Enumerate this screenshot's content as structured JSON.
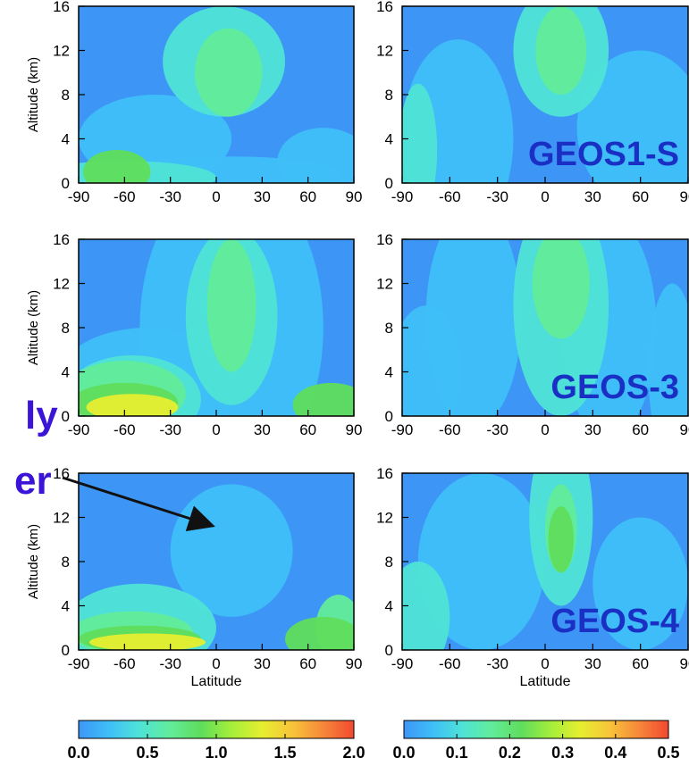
{
  "chart_data": [
    {
      "type": "heatmap",
      "panel": "top-left",
      "xlabel": "",
      "ylabel": "Altitude (km)",
      "xlim": [
        -90,
        90
      ],
      "ylim": [
        0,
        16
      ],
      "label": "",
      "scale": "left"
    },
    {
      "type": "heatmap",
      "panel": "top-right",
      "xlabel": "",
      "ylabel": "",
      "xlim": [
        -90,
        90
      ],
      "ylim": [
        0,
        16
      ],
      "label": "GEOS1-S",
      "scale": "right"
    },
    {
      "type": "heatmap",
      "panel": "mid-left",
      "xlabel": "",
      "ylabel": "Altitude (km)",
      "xlim": [
        -90,
        90
      ],
      "ylim": [
        0,
        16
      ],
      "label": "",
      "scale": "left"
    },
    {
      "type": "heatmap",
      "panel": "mid-right",
      "xlabel": "",
      "ylabel": "",
      "xlim": [
        -90,
        90
      ],
      "ylim": [
        0,
        16
      ],
      "label": "GEOS-3",
      "scale": "right"
    },
    {
      "type": "heatmap",
      "panel": "bot-left",
      "xlabel": "Latitude",
      "ylabel": "Altitude (km)",
      "xlim": [
        -90,
        90
      ],
      "ylim": [
        0,
        16
      ],
      "label": "",
      "scale": "left"
    },
    {
      "type": "heatmap",
      "panel": "bot-right",
      "xlabel": "Latitude",
      "ylabel": "",
      "xlim": [
        -90,
        90
      ],
      "ylim": [
        0,
        16
      ],
      "label": "GEOS-4",
      "scale": "right"
    }
  ],
  "axes": {
    "x_ticks": [
      "-90",
      "-60",
      "-30",
      "0",
      "30",
      "60",
      "90"
    ],
    "y_ticks": [
      "0",
      "4",
      "8",
      "12",
      "16"
    ],
    "ylabel": "Altitude (km)",
    "xlabel": "Latitude"
  },
  "colorbars": [
    {
      "ticks": [
        "0.0",
        "0.5",
        "1.0",
        "1.5",
        "2.0"
      ],
      "min": 0.0,
      "max": 2.0
    },
    {
      "ticks": [
        "0.0",
        "0.1",
        "0.2",
        "0.3",
        "0.4",
        "0.5"
      ],
      "min": 0.0,
      "max": 0.5
    }
  ],
  "overflow_text": {
    "line1": "ly",
    "line2": "er"
  },
  "colors": {
    "background": "#3d96f5",
    "label": "#1a2fc4",
    "annotation": "#3b14d8",
    "arrow": "#111111"
  },
  "colormap": [
    "#3d96f5",
    "#3fbff8",
    "#4fe3d6",
    "#62ec9a",
    "#5fdd5c",
    "#a5ee3a",
    "#e6ee2f",
    "#f7c43a",
    "#f6873a",
    "#f2492f"
  ]
}
